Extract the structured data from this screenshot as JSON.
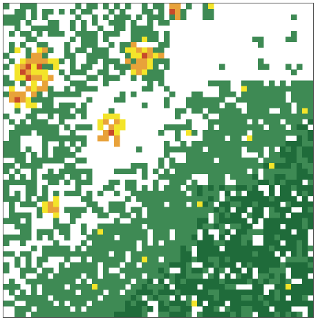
{
  "map": {
    "type": "raster-grid",
    "grid": {
      "cols": 56,
      "rows": 57
    },
    "background": "#ffffff",
    "frame_color": "#555555",
    "colors": {
      "0": "#ffffff",
      "1": "#3e8a54",
      "2": "#1f6b3a",
      "3": "#f3e42a",
      "4": "#e8a23a",
      "5": "#c84a2a"
    },
    "legend": [],
    "seed": 7
  }
}
